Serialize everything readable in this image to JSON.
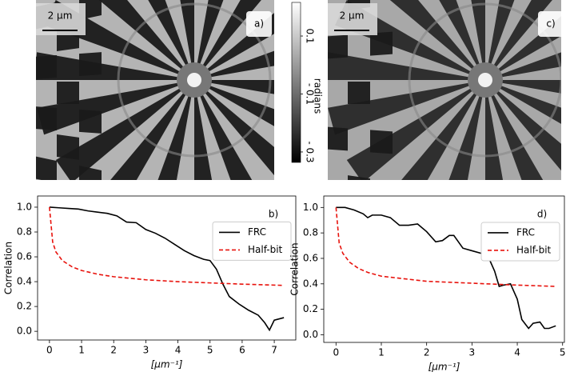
{
  "images": [
    {
      "label": "a)",
      "scale_bar": "2 μm"
    },
    {
      "label": "c)",
      "scale_bar": "2 μm"
    }
  ],
  "colorbar": {
    "label": "radians",
    "lim": [
      -0.336,
      0.216
    ],
    "ticks": [
      {
        "value": 0.1,
        "label": "0.1"
      },
      {
        "value": -0.1,
        "label": "- 0.1"
      },
      {
        "value": -0.3,
        "label": "- 0.3"
      }
    ]
  },
  "chart_data": [
    {
      "type": "line",
      "panel_label": "b)",
      "xlabel": "[μm⁻¹]",
      "ylabel": "Correlation",
      "xlim": [
        -0.37,
        7.67
      ],
      "ylim": [
        -0.07,
        1.09
      ],
      "xticks": [
        0,
        1,
        2,
        3,
        4,
        5,
        6,
        7
      ],
      "yticks": [
        {
          "value": 0,
          "label": "0.0"
        },
        0.2,
        0.4,
        0.6,
        0.8,
        {
          "value": 1,
          "label": "1.0"
        }
      ],
      "legend": "center right",
      "series": [
        {
          "name": "FRC",
          "color": "#000000",
          "dash": "solid",
          "x": [
            0,
            0.3,
            0.6,
            0.9,
            1.2,
            1.5,
            1.8,
            2.1,
            2.4,
            2.7,
            3.0,
            3.3,
            3.6,
            3.9,
            4.2,
            4.5,
            4.8,
            5.0,
            5.2,
            5.4,
            5.6,
            5.9,
            6.2,
            6.5,
            6.7,
            6.85,
            7.0,
            7.3
          ],
          "values": [
            1.0,
            0.995,
            0.99,
            0.985,
            0.97,
            0.96,
            0.95,
            0.93,
            0.88,
            0.875,
            0.82,
            0.79,
            0.75,
            0.7,
            0.65,
            0.61,
            0.58,
            0.57,
            0.5,
            0.38,
            0.28,
            0.22,
            0.17,
            0.13,
            0.07,
            0.01,
            0.09,
            0.11
          ]
        },
        {
          "name": "Half-bit",
          "color": "#e8120c",
          "dash": "dashed",
          "x": [
            0,
            0.1,
            0.2,
            0.4,
            0.7,
            1.0,
            1.5,
            2,
            3,
            4,
            5,
            6,
            7.3
          ],
          "values": [
            1.0,
            0.72,
            0.64,
            0.57,
            0.52,
            0.49,
            0.46,
            0.44,
            0.415,
            0.4,
            0.39,
            0.38,
            0.37
          ]
        }
      ]
    },
    {
      "type": "line",
      "panel_label": "d)",
      "xlabel": "[μm⁻¹]",
      "ylabel": "Correlation",
      "xlim": [
        -0.27,
        5.04
      ],
      "ylim": [
        -0.06,
        1.09
      ],
      "xticks": [
        0,
        1,
        2,
        3,
        4,
        5
      ],
      "yticks": [
        {
          "value": 0,
          "label": "0.0"
        },
        0.2,
        0.4,
        0.6,
        0.8,
        {
          "value": 1,
          "label": "1.0"
        }
      ],
      "legend": "center right",
      "series": [
        {
          "name": "FRC",
          "color": "#000000",
          "dash": "solid",
          "x": [
            0,
            0.2,
            0.4,
            0.6,
            0.7,
            0.8,
            1.0,
            1.2,
            1.4,
            1.6,
            1.8,
            2.0,
            2.2,
            2.35,
            2.5,
            2.6,
            2.8,
            3.0,
            3.2,
            3.4,
            3.5,
            3.6,
            3.7,
            3.85,
            4.0,
            4.1,
            4.25,
            4.35,
            4.5,
            4.6,
            4.7,
            4.85
          ],
          "values": [
            1.0,
            1.0,
            0.98,
            0.95,
            0.92,
            0.94,
            0.94,
            0.92,
            0.86,
            0.86,
            0.87,
            0.81,
            0.73,
            0.74,
            0.78,
            0.78,
            0.68,
            0.66,
            0.64,
            0.58,
            0.5,
            0.38,
            0.39,
            0.4,
            0.28,
            0.12,
            0.05,
            0.09,
            0.1,
            0.05,
            0.05,
            0.07
          ]
        },
        {
          "name": "Half-bit",
          "color": "#e8120c",
          "dash": "dashed",
          "x": [
            0,
            0.07,
            0.15,
            0.3,
            0.5,
            0.7,
            1,
            1.5,
            2,
            3,
            4,
            4.85
          ],
          "values": [
            1.0,
            0.72,
            0.64,
            0.57,
            0.52,
            0.49,
            0.46,
            0.44,
            0.42,
            0.405,
            0.39,
            0.38
          ]
        }
      ]
    }
  ]
}
